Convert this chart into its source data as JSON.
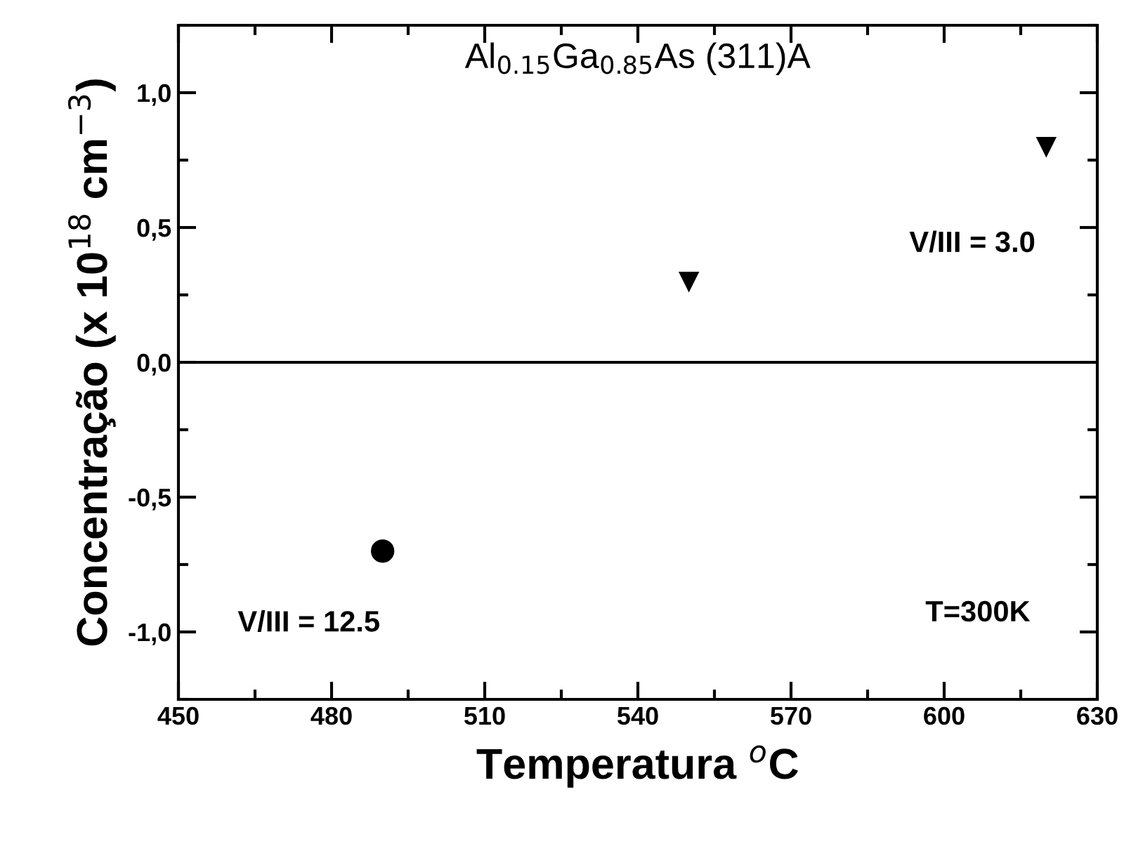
{
  "chart_data": {
    "type": "scatter",
    "title": "Al$_{0.15}$Ga$_{0.85}$As (311)A",
    "xlabel": "Temperatura $^{o}$C",
    "ylabel": "Concentração (x 10$^{18}$ cm$^{−3}$)",
    "series": [
      {
        "color": "#000000",
        "marker": "circle",
        "x": [
          490
        ],
        "values": [
          -0.7
        ]
      },
      {
        "color": "#000000",
        "marker": "triangle",
        "x": [
          550,
          620
        ],
        "values": [
          0.3,
          0.8
        ]
      }
    ],
    "annotations": [
      "V/III = 12.5",
      "V/III = 3.0",
      "T=300K"
    ],
    "ref_lines": [
      {
        "axis": "y",
        "value": 0,
        "color": "#000000"
      }
    ],
    "xlim": [
      450,
      630
    ],
    "xticks": [
      450,
      480,
      510,
      540,
      570,
      600,
      630
    ],
    "ylim": [
      -1.25,
      1.25
    ],
    "yticks": [
      {
        "value": -1.0,
        "label": "-1,0"
      },
      {
        "value": -0.5,
        "label": "-0,5"
      },
      {
        "value": 0.0,
        "label": "0,0"
      },
      {
        "value": 0.5,
        "label": "0,5"
      },
      {
        "value": 1.0,
        "label": "1,0"
      }
    ],
    "grid": false,
    "legend": false
  }
}
